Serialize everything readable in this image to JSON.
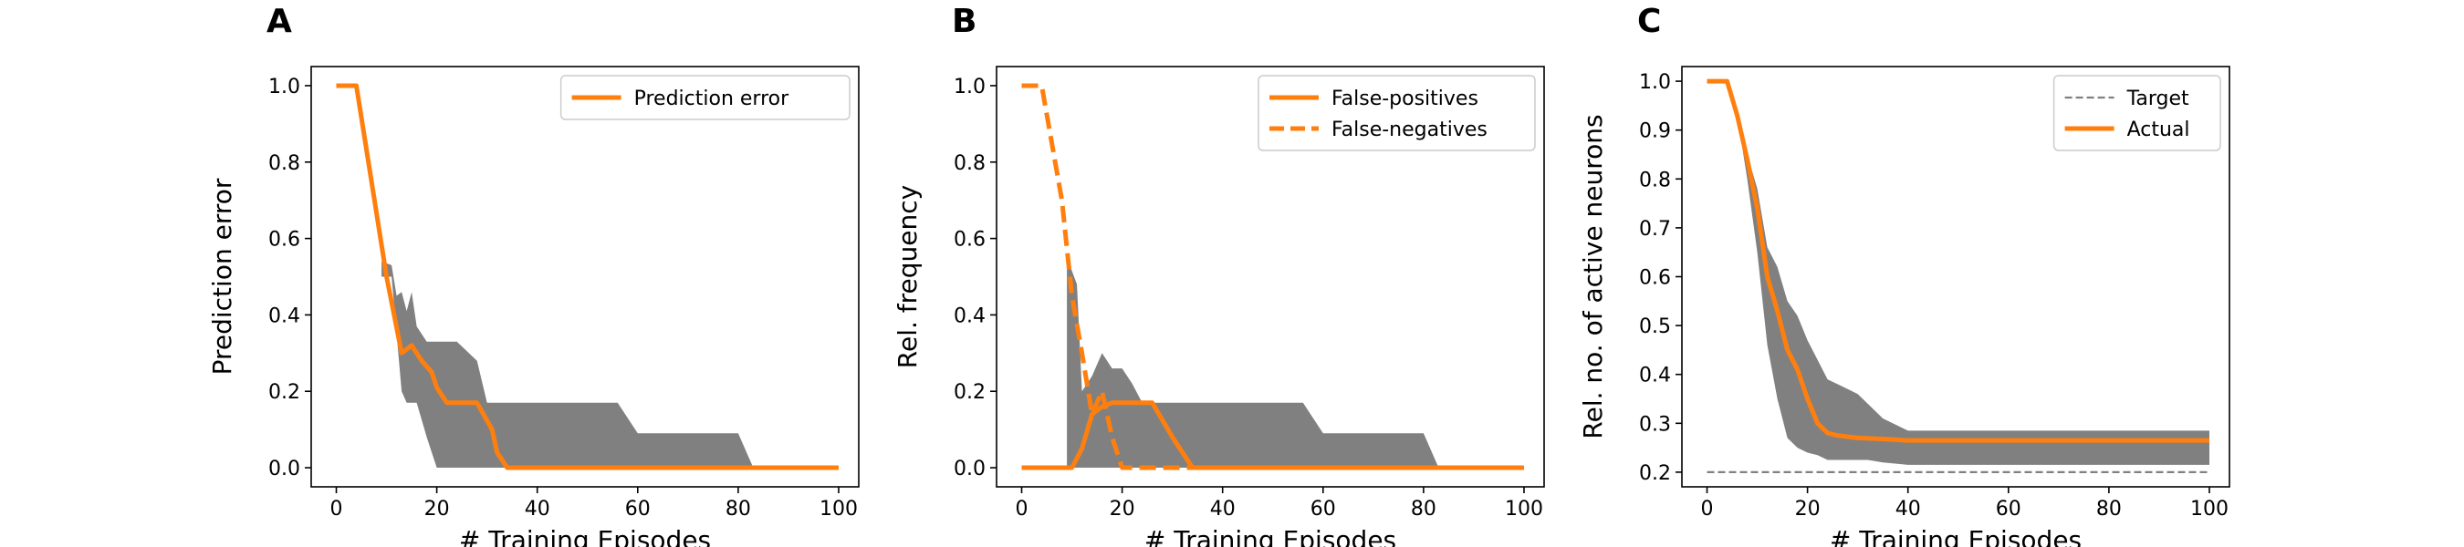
{
  "colors": {
    "line": "#ff7f0e",
    "band": "#808080",
    "target": "#808080"
  },
  "chart_data": [
    {
      "panel": "A",
      "type": "line",
      "xlabel": "# Training Episodes",
      "ylabel": "Prediction error",
      "xlim": [
        -5,
        104
      ],
      "ylim": [
        -0.05,
        1.05
      ],
      "xticks": [
        0,
        20,
        40,
        60,
        80,
        100
      ],
      "yticks": [
        "0.0",
        "0.2",
        "0.4",
        "0.6",
        "0.8",
        "1.0"
      ],
      "legend": {
        "position": "top-right"
      },
      "series": [
        {
          "name": "Prediction error",
          "style": "solid",
          "x": [
            0,
            4,
            10,
            13,
            15,
            17,
            19,
            20,
            22,
            28,
            31,
            32,
            34,
            100
          ],
          "y": [
            1.0,
            1.0,
            0.5,
            0.3,
            0.32,
            0.28,
            0.25,
            0.21,
            0.17,
            0.17,
            0.1,
            0.04,
            0.0,
            0.0
          ]
        }
      ],
      "band": {
        "x": [
          9,
          11,
          12,
          13,
          14,
          15,
          16,
          18,
          20,
          22,
          24,
          28,
          30,
          32,
          34,
          56,
          60,
          80,
          83,
          100
        ],
        "upper": [
          0.54,
          0.53,
          0.45,
          0.46,
          0.41,
          0.46,
          0.37,
          0.33,
          0.33,
          0.33,
          0.33,
          0.28,
          0.17,
          0.17,
          0.17,
          0.17,
          0.09,
          0.09,
          0.0,
          0.0
        ],
        "lower": [
          0.5,
          0.5,
          0.35,
          0.2,
          0.17,
          0.17,
          0.17,
          0.08,
          0.0,
          0.0,
          0.0,
          0.0,
          0.0,
          0.0,
          0.0,
          0.0,
          0.0,
          0.0,
          0.0,
          0.0
        ]
      }
    },
    {
      "panel": "B",
      "type": "line",
      "xlabel": "# Training Episodes",
      "ylabel": "Rel. frequency",
      "xlim": [
        -5,
        104
      ],
      "ylim": [
        -0.05,
        1.05
      ],
      "xticks": [
        0,
        20,
        40,
        60,
        80,
        100
      ],
      "yticks": [
        "0.0",
        "0.2",
        "0.4",
        "0.6",
        "0.8",
        "1.0"
      ],
      "legend": {
        "position": "top-right"
      },
      "series": [
        {
          "name": "False-positives",
          "style": "solid",
          "x": [
            0,
            10,
            12,
            14,
            16,
            18,
            26,
            30,
            34,
            100
          ],
          "y": [
            0.0,
            0.0,
            0.05,
            0.14,
            0.16,
            0.17,
            0.17,
            0.08,
            0.0,
            0.0
          ]
        },
        {
          "name": "False-negatives",
          "style": "dashed",
          "x": [
            0,
            4,
            8,
            10,
            12,
            14,
            16,
            18,
            20,
            22,
            26,
            28,
            100
          ],
          "y": [
            1.0,
            1.0,
            0.7,
            0.45,
            0.3,
            0.14,
            0.2,
            0.08,
            0.0,
            0.0,
            0.0,
            0.0,
            0.0
          ]
        }
      ],
      "band": {
        "x": [
          9,
          11,
          12,
          14,
          16,
          18,
          20,
          22,
          24,
          28,
          30,
          32,
          34,
          56,
          60,
          80,
          83,
          100
        ],
        "upper": [
          0.55,
          0.48,
          0.2,
          0.24,
          0.3,
          0.26,
          0.26,
          0.22,
          0.17,
          0.17,
          0.17,
          0.17,
          0.17,
          0.17,
          0.09,
          0.09,
          0.0,
          0.0
        ],
        "lower": [
          0.0,
          0.0,
          0.0,
          0.0,
          0.0,
          0.0,
          0.0,
          0.0,
          0.0,
          0.0,
          0.0,
          0.0,
          0.0,
          0.0,
          0.0,
          0.0,
          0.0,
          0.0
        ]
      }
    },
    {
      "panel": "C",
      "type": "line",
      "xlabel": "# Training Episodes",
      "ylabel": "Rel. no. of active neurons",
      "xlim": [
        -5,
        104
      ],
      "ylim": [
        0.17,
        1.03
      ],
      "xticks": [
        0,
        20,
        40,
        60,
        80,
        100
      ],
      "yticks": [
        "0.2",
        "0.3",
        "0.4",
        "0.5",
        "0.6",
        "0.7",
        "0.8",
        "0.9",
        "1.0"
      ],
      "legend": {
        "position": "top-right"
      },
      "series": [
        {
          "name": "Target",
          "style": "dashed-thin",
          "x": [
            0,
            100
          ],
          "y": [
            0.2,
            0.2
          ]
        },
        {
          "name": "Actual",
          "style": "solid",
          "x": [
            0,
            4,
            6,
            8,
            10,
            12,
            14,
            16,
            18,
            20,
            22,
            24,
            26,
            30,
            35,
            40,
            100
          ],
          "y": [
            1.0,
            1.0,
            0.93,
            0.84,
            0.74,
            0.6,
            0.53,
            0.45,
            0.41,
            0.35,
            0.3,
            0.28,
            0.275,
            0.27,
            0.268,
            0.265,
            0.265
          ]
        }
      ],
      "band": {
        "x": [
          6,
          8,
          10,
          12,
          14,
          16,
          18,
          20,
          22,
          24,
          26,
          28,
          30,
          32,
          35,
          40,
          100
        ],
        "upper": [
          0.93,
          0.85,
          0.78,
          0.66,
          0.62,
          0.55,
          0.52,
          0.47,
          0.43,
          0.39,
          0.38,
          0.37,
          0.36,
          0.34,
          0.31,
          0.285,
          0.285
        ],
        "lower": [
          0.93,
          0.8,
          0.65,
          0.46,
          0.35,
          0.27,
          0.25,
          0.24,
          0.235,
          0.225,
          0.225,
          0.225,
          0.225,
          0.225,
          0.22,
          0.215,
          0.215
        ]
      }
    }
  ]
}
